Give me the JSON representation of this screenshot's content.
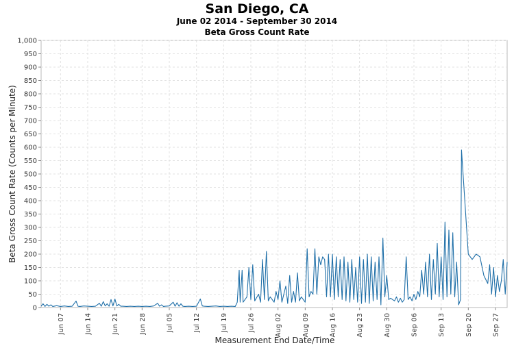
{
  "chart_data": {
    "type": "line",
    "title": "San Diego, CA",
    "subtitle": "June 02 2014 - September 30 2014",
    "subtitle2": "Beta Gross Count Rate",
    "xlabel": "Measurement End Date/Time",
    "ylabel": "Beta Gross Count Rate (Counts per Minute)",
    "ylim": [
      0,
      1000
    ],
    "yticks": [
      "0",
      "50",
      "100",
      "150",
      "200",
      "250",
      "300",
      "350",
      "400",
      "450",
      "500",
      "550",
      "600",
      "650",
      "700",
      "750",
      "800",
      "850",
      "900",
      "950",
      "1,000"
    ],
    "xlim": [
      "2014-06-02",
      "2014-09-30"
    ],
    "xticks": [
      {
        "label": "Jun 07",
        "date": "2014-06-07"
      },
      {
        "label": "Jun 14",
        "date": "2014-06-14"
      },
      {
        "label": "Jun 21",
        "date": "2014-06-21"
      },
      {
        "label": "Jun 28",
        "date": "2014-06-28"
      },
      {
        "label": "Jul 05",
        "date": "2014-07-05"
      },
      {
        "label": "Jul 12",
        "date": "2014-07-12"
      },
      {
        "label": "Jul 19",
        "date": "2014-07-19"
      },
      {
        "label": "Jul 26",
        "date": "2014-07-26"
      },
      {
        "label": "Aug 02",
        "date": "2014-08-02"
      },
      {
        "label": "Aug 09",
        "date": "2014-08-09"
      },
      {
        "label": "Aug 16",
        "date": "2014-08-16"
      },
      {
        "label": "Aug 23",
        "date": "2014-08-23"
      },
      {
        "label": "Aug 30",
        "date": "2014-08-30"
      },
      {
        "label": "Sep 06",
        "date": "2014-09-06"
      },
      {
        "label": "Sep 13",
        "date": "2014-09-13"
      },
      {
        "label": "Sep 20",
        "date": "2014-09-20"
      },
      {
        "label": "Sep 27",
        "date": "2014-09-27"
      }
    ],
    "grid": true,
    "line_color": "#1f6fa8",
    "series": [
      {
        "values": [
          [
            "2014-06-02",
            5
          ],
          [
            "2014-06-02T12:00",
            14
          ],
          [
            "2014-06-03",
            4
          ],
          [
            "2014-06-03T12:00",
            12
          ],
          [
            "2014-06-04",
            5
          ],
          [
            "2014-06-04T12:00",
            10
          ],
          [
            "2014-06-05",
            4
          ],
          [
            "2014-06-06",
            7
          ],
          [
            "2014-06-07",
            4
          ],
          [
            "2014-06-08",
            6
          ],
          [
            "2014-06-09",
            4
          ],
          [
            "2014-06-10",
            5
          ],
          [
            "2014-06-11",
            24
          ],
          [
            "2014-06-11T12:00",
            5
          ],
          [
            "2014-06-12",
            4
          ],
          [
            "2014-06-13",
            6
          ],
          [
            "2014-06-14",
            5
          ],
          [
            "2014-06-15",
            4
          ],
          [
            "2014-06-16",
            5
          ],
          [
            "2014-06-17",
            16
          ],
          [
            "2014-06-17T12:00",
            5
          ],
          [
            "2014-06-18",
            22
          ],
          [
            "2014-06-18T12:00",
            6
          ],
          [
            "2014-06-19",
            14
          ],
          [
            "2014-06-19T12:00",
            5
          ],
          [
            "2014-06-20",
            30
          ],
          [
            "2014-06-20T12:00",
            6
          ],
          [
            "2014-06-21",
            32
          ],
          [
            "2014-06-21T12:00",
            6
          ],
          [
            "2014-06-22",
            12
          ],
          [
            "2014-06-22T12:00",
            5
          ],
          [
            "2014-06-23",
            5
          ],
          [
            "2014-06-24",
            4
          ],
          [
            "2014-06-25",
            5
          ],
          [
            "2014-06-26",
            4
          ],
          [
            "2014-06-27",
            5
          ],
          [
            "2014-06-28",
            4
          ],
          [
            "2014-06-29",
            5
          ],
          [
            "2014-06-30",
            4
          ],
          [
            "2014-07-01",
            6
          ],
          [
            "2014-07-02",
            16
          ],
          [
            "2014-07-02T12:00",
            5
          ],
          [
            "2014-07-03",
            10
          ],
          [
            "2014-07-03T12:00",
            4
          ],
          [
            "2014-07-04",
            5
          ],
          [
            "2014-07-05",
            6
          ],
          [
            "2014-07-06",
            20
          ],
          [
            "2014-07-06T12:00",
            5
          ],
          [
            "2014-07-07",
            18
          ],
          [
            "2014-07-07T12:00",
            5
          ],
          [
            "2014-07-08",
            14
          ],
          [
            "2014-07-08T12:00",
            5
          ],
          [
            "2014-07-09",
            4
          ],
          [
            "2014-07-10",
            5
          ],
          [
            "2014-07-11",
            4
          ],
          [
            "2014-07-12",
            5
          ],
          [
            "2014-07-13",
            32
          ],
          [
            "2014-07-13T12:00",
            6
          ],
          [
            "2014-07-14",
            5
          ],
          [
            "2014-07-15",
            4
          ],
          [
            "2014-07-16",
            5
          ],
          [
            "2014-07-17",
            6
          ],
          [
            "2014-07-18",
            4
          ],
          [
            "2014-07-19",
            5
          ],
          [
            "2014-07-20",
            4
          ],
          [
            "2014-07-21",
            5
          ],
          [
            "2014-07-22",
            4
          ],
          [
            "2014-07-22T12:00",
            20
          ],
          [
            "2014-07-23",
            140
          ],
          [
            "2014-07-23T06:00",
            20
          ],
          [
            "2014-07-23T18:00",
            140
          ],
          [
            "2014-07-24",
            20
          ],
          [
            "2014-07-25",
            40
          ],
          [
            "2014-07-25T12:00",
            150
          ],
          [
            "2014-07-26",
            30
          ],
          [
            "2014-07-26T12:00",
            160
          ],
          [
            "2014-07-27",
            25
          ],
          [
            "2014-07-28",
            50
          ],
          [
            "2014-07-28T12:00",
            20
          ],
          [
            "2014-07-29",
            180
          ],
          [
            "2014-07-29T12:00",
            30
          ],
          [
            "2014-07-30",
            210
          ],
          [
            "2014-07-30T12:00",
            25
          ],
          [
            "2014-07-31",
            40
          ],
          [
            "2014-08-01",
            20
          ],
          [
            "2014-08-01T12:00",
            60
          ],
          [
            "2014-08-02",
            30
          ],
          [
            "2014-08-02T12:00",
            100
          ],
          [
            "2014-08-03",
            20
          ],
          [
            "2014-08-04",
            80
          ],
          [
            "2014-08-04T12:00",
            15
          ],
          [
            "2014-08-05",
            120
          ],
          [
            "2014-08-05T12:00",
            20
          ],
          [
            "2014-08-06",
            60
          ],
          [
            "2014-08-06T12:00",
            20
          ],
          [
            "2014-08-07",
            130
          ],
          [
            "2014-08-07T12:00",
            25
          ],
          [
            "2014-08-08",
            40
          ],
          [
            "2014-08-09",
            20
          ],
          [
            "2014-08-09T12:00",
            220
          ],
          [
            "2014-08-10",
            40
          ],
          [
            "2014-08-10T12:00",
            60
          ],
          [
            "2014-08-11",
            50
          ],
          [
            "2014-08-11T12:00",
            220
          ],
          [
            "2014-08-12",
            50
          ],
          [
            "2014-08-12T12:00",
            190
          ],
          [
            "2014-08-13",
            160
          ],
          [
            "2014-08-13T12:00",
            190
          ],
          [
            "2014-08-14",
            180
          ],
          [
            "2014-08-14T12:00",
            40
          ],
          [
            "2014-08-15",
            200
          ],
          [
            "2014-08-15T12:00",
            40
          ],
          [
            "2014-08-16",
            200
          ],
          [
            "2014-08-16T12:00",
            30
          ],
          [
            "2014-08-17",
            190
          ],
          [
            "2014-08-17T12:00",
            40
          ],
          [
            "2014-08-18",
            180
          ],
          [
            "2014-08-18T12:00",
            30
          ],
          [
            "2014-08-19",
            190
          ],
          [
            "2014-08-19T12:00",
            25
          ],
          [
            "2014-08-20",
            170
          ],
          [
            "2014-08-20T12:00",
            20
          ],
          [
            "2014-08-21",
            180
          ],
          [
            "2014-08-21T12:00",
            30
          ],
          [
            "2014-08-22",
            150
          ],
          [
            "2014-08-22T12:00",
            20
          ],
          [
            "2014-08-23",
            190
          ],
          [
            "2014-08-23T12:00",
            15
          ],
          [
            "2014-08-24",
            180
          ],
          [
            "2014-08-24T12:00",
            20
          ],
          [
            "2014-08-25",
            200
          ],
          [
            "2014-08-25T12:00",
            15
          ],
          [
            "2014-08-26",
            190
          ],
          [
            "2014-08-26T12:00",
            25
          ],
          [
            "2014-08-27",
            170
          ],
          [
            "2014-08-27T12:00",
            30
          ],
          [
            "2014-08-28",
            190
          ],
          [
            "2014-08-28T12:00",
            10
          ],
          [
            "2014-08-29",
            260
          ],
          [
            "2014-08-29T12:00",
            40
          ],
          [
            "2014-08-30",
            120
          ],
          [
            "2014-08-30T12:00",
            30
          ],
          [
            "2014-08-31",
            35
          ],
          [
            "2014-09-01",
            25
          ],
          [
            "2014-09-01T12:00",
            40
          ],
          [
            "2014-09-02",
            20
          ],
          [
            "2014-09-02T12:00",
            35
          ],
          [
            "2014-09-03",
            20
          ],
          [
            "2014-09-03T12:00",
            30
          ],
          [
            "2014-09-04",
            190
          ],
          [
            "2014-09-04T12:00",
            30
          ],
          [
            "2014-09-05",
            40
          ],
          [
            "2014-09-05T12:00",
            25
          ],
          [
            "2014-09-06",
            50
          ],
          [
            "2014-09-06T12:00",
            30
          ],
          [
            "2014-09-07",
            60
          ],
          [
            "2014-09-07T12:00",
            40
          ],
          [
            "2014-09-08",
            140
          ],
          [
            "2014-09-08T12:00",
            50
          ],
          [
            "2014-09-09",
            170
          ],
          [
            "2014-09-09T12:00",
            40
          ],
          [
            "2014-09-10",
            200
          ],
          [
            "2014-09-10T12:00",
            30
          ],
          [
            "2014-09-11",
            180
          ],
          [
            "2014-09-11T12:00",
            50
          ],
          [
            "2014-09-12",
            240
          ],
          [
            "2014-09-12T12:00",
            40
          ],
          [
            "2014-09-13",
            190
          ],
          [
            "2014-09-13T12:00",
            30
          ],
          [
            "2014-09-14",
            320
          ],
          [
            "2014-09-14T12:00",
            40
          ],
          [
            "2014-09-15",
            290
          ],
          [
            "2014-09-15T12:00",
            50
          ],
          [
            "2014-09-16",
            280
          ],
          [
            "2014-09-16T12:00",
            40
          ],
          [
            "2014-09-17",
            170
          ],
          [
            "2014-09-17T12:00",
            10
          ],
          [
            "2014-09-18",
            30
          ],
          [
            "2014-09-18T06:00",
            590
          ],
          [
            "2014-09-20",
            200
          ],
          [
            "2014-09-21",
            180
          ],
          [
            "2014-09-22",
            200
          ],
          [
            "2014-09-23",
            190
          ],
          [
            "2014-09-24",
            120
          ],
          [
            "2014-09-25",
            90
          ],
          [
            "2014-09-25T12:00",
            160
          ],
          [
            "2014-09-26",
            50
          ],
          [
            "2014-09-26T12:00",
            150
          ],
          [
            "2014-09-27",
            40
          ],
          [
            "2014-09-27T12:00",
            120
          ],
          [
            "2014-09-28",
            60
          ],
          [
            "2014-09-28T12:00",
            100
          ],
          [
            "2014-09-29",
            180
          ],
          [
            "2014-09-29T12:00",
            50
          ],
          [
            "2014-09-30",
            170
          ]
        ]
      }
    ]
  }
}
